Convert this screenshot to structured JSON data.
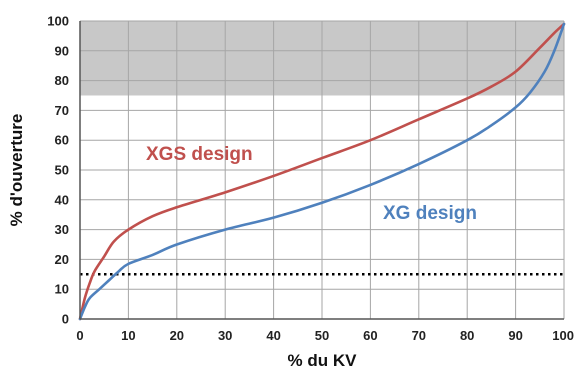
{
  "chart_data": {
    "type": "line",
    "xlabel": "% du KV",
    "ylabel": "% d'ouverture",
    "xlim": [
      0,
      100
    ],
    "ylim": [
      0,
      100
    ],
    "x_ticks": [
      "0",
      "10",
      "20",
      "30",
      "40",
      "50",
      "60",
      "70",
      "80",
      "90",
      "100"
    ],
    "y_ticks": [
      "0",
      "10",
      "20",
      "30",
      "40",
      "50",
      "60",
      "70",
      "80",
      "90",
      "100"
    ],
    "grid": true,
    "shaded_band": {
      "y_from": 75,
      "y_to": 100,
      "color": "#c8c8c8"
    },
    "reference_line": {
      "y": 15,
      "style": "dotted",
      "color": "#000000"
    },
    "series": [
      {
        "name": "XGS design",
        "color": "#c0504d",
        "x": [
          0,
          1,
          2,
          3,
          5,
          7,
          10,
          15,
          20,
          30,
          40,
          50,
          60,
          70,
          80,
          85,
          90,
          95,
          98,
          100
        ],
        "y": [
          0,
          7,
          12,
          16,
          21,
          26,
          30,
          34.5,
          37.5,
          42.5,
          48,
          54,
          60,
          67,
          74,
          78,
          83,
          91,
          96,
          99
        ]
      },
      {
        "name": "XG design",
        "color": "#4f81bd",
        "x": [
          0,
          1,
          2,
          4,
          6,
          8,
          10,
          15,
          20,
          30,
          40,
          50,
          60,
          70,
          80,
          85,
          90,
          93,
          96,
          98,
          100
        ],
        "y": [
          0,
          4,
          7,
          10,
          13,
          16,
          18.5,
          21.5,
          25,
          30,
          34,
          39,
          45,
          52,
          60,
          65,
          71,
          76,
          83,
          90,
          99
        ]
      }
    ]
  }
}
